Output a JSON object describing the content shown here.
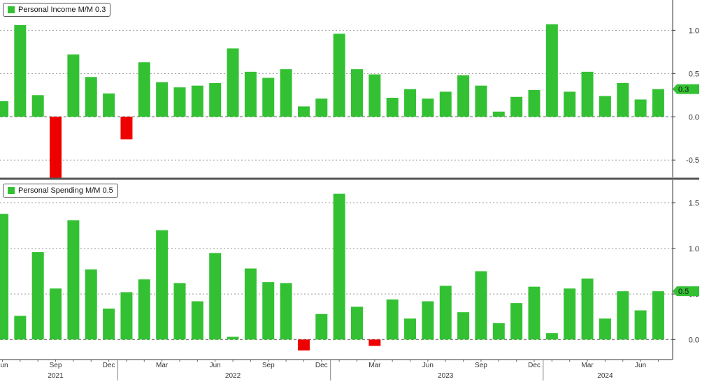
{
  "chart_data": [
    {
      "type": "bar",
      "legend": "Personal Income M/M 0.3",
      "last_value_label": "0.3",
      "colors": {
        "positive": "#33c133",
        "negative": "#ee0000"
      },
      "ylim": [
        -0.7,
        1.35
      ],
      "yticks": [
        1.0,
        0.5,
        0.0,
        -0.5
      ],
      "ytick_labels": [
        "1.0",
        "0.5",
        "0.0",
        "-0.5"
      ],
      "values": [
        0.18,
        1.06,
        0.25,
        -0.72,
        0.72,
        0.46,
        0.27,
        -0.26,
        0.63,
        0.4,
        0.34,
        0.36,
        0.39,
        0.79,
        0.52,
        0.45,
        0.55,
        0.12,
        0.21,
        0.96,
        0.55,
        0.49,
        0.22,
        0.32,
        0.21,
        0.29,
        0.48,
        0.36,
        0.06,
        0.23,
        0.31,
        1.07,
        0.29,
        0.52,
        0.24,
        0.39,
        0.2,
        0.32
      ]
    },
    {
      "type": "bar",
      "legend": "Personal Spending M/M 0.5",
      "last_value_label": "0.5",
      "colors": {
        "positive": "#33c133",
        "negative": "#ee0000"
      },
      "ylim": [
        -0.22,
        1.75
      ],
      "yticks": [
        1.5,
        1.0,
        0.5,
        0.0
      ],
      "ytick_labels": [
        "1.5",
        "1.0",
        "0.5",
        "0.0"
      ],
      "values": [
        1.38,
        0.26,
        0.96,
        0.56,
        1.31,
        0.77,
        0.34,
        0.52,
        0.66,
        1.2,
        0.62,
        0.42,
        0.95,
        0.03,
        0.78,
        0.63,
        0.62,
        -0.12,
        0.28,
        1.6,
        0.36,
        -0.07,
        0.44,
        0.23,
        0.42,
        0.59,
        0.3,
        0.75,
        0.18,
        0.4,
        0.58,
        0.07,
        0.56,
        0.67,
        0.23,
        0.53,
        0.32,
        0.53
      ]
    }
  ],
  "x_axis": {
    "month_labels": [
      "Jun",
      "Sep",
      "Dec",
      "Mar",
      "Jun",
      "Sep",
      "Dec",
      "Mar",
      "Jun",
      "Sep",
      "Dec",
      "Mar",
      "Jun"
    ],
    "year_labels": [
      "2021",
      "2022",
      "2023",
      "2024"
    ]
  }
}
